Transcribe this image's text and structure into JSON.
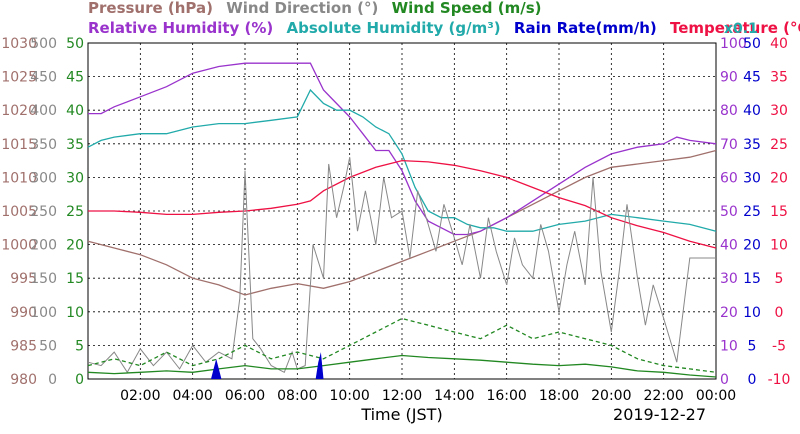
{
  "chart_data": {
    "type": "line",
    "date_label": "2019-12-27",
    "xlabel": "Time (JST)",
    "x_ticks": [
      "02:00",
      "04:00",
      "06:00",
      "08:00",
      "10:00",
      "12:00",
      "14:00",
      "16:00",
      "18:00",
      "20:00",
      "22:00",
      "00:00"
    ],
    "x_range_hours": [
      0,
      24
    ],
    "grid": true,
    "legend_row1": [
      {
        "text": "Pressure (hPa)",
        "color": "#a0706c"
      },
      {
        "text": "Wind Direction (°)",
        "color": "#888888"
      },
      {
        "text": "Wind Speed (m/s)",
        "color": "#228822"
      }
    ],
    "legend_row2": [
      {
        "text": "Relative Humidity (%)",
        "color": "#9933cc"
      },
      {
        "text": "Absolute Humidity (g/m³)",
        "color": "#22aaaa"
      },
      {
        "text": "Rain Rate(mm/h)",
        "color": "#0000cc"
      },
      {
        "text": "Temperature (°C)",
        "color": "#ee1144"
      },
      {
        "text": "x0.1",
        "color": "#22aaaa"
      }
    ],
    "axes": {
      "pressure": {
        "color": "#a0706c",
        "ticks": [
          "980",
          "985",
          "990",
          "995",
          "1000",
          "1005",
          "1010",
          "1015",
          "1020",
          "1025",
          "1030"
        ],
        "range": [
          980,
          1030
        ]
      },
      "wind_direction": {
        "color": "#888888",
        "ticks": [
          "0",
          "50",
          "100",
          "150",
          "200",
          "250",
          "300",
          "350",
          "400",
          "450",
          "500"
        ],
        "range": [
          0,
          500
        ]
      },
      "wind_speed": {
        "color": "#228822",
        "ticks": [
          "0",
          "5",
          "10",
          "15",
          "20",
          "25",
          "30",
          "35",
          "40",
          "45",
          "50"
        ],
        "range": [
          0,
          50
        ]
      },
      "relative_humidity": {
        "color": "#9933cc",
        "ticks": [
          "0",
          "10",
          "20",
          "30",
          "40",
          "50",
          "60",
          "70",
          "80",
          "90",
          "100"
        ],
        "range": [
          0,
          100
        ]
      },
      "rain_rate": {
        "color": "#0000cc",
        "ticks": [
          "0",
          "5",
          "10",
          "15",
          "20",
          "25",
          "30",
          "35",
          "40",
          "45",
          "50"
        ],
        "range": [
          0,
          50
        ]
      },
      "temperature": {
        "color": "#ee1144",
        "ticks": [
          "-10",
          "-5",
          "0",
          "5",
          "10",
          "15",
          "20",
          "25",
          "30",
          "35",
          "40"
        ],
        "range": [
          -10,
          40
        ]
      }
    },
    "series": [
      {
        "name": "Pressure (hPa)",
        "color": "#a0706c",
        "axis": "pressure",
        "x": [
          0,
          1,
          2,
          3,
          4,
          5,
          6,
          7,
          8,
          9,
          10,
          11,
          12,
          13,
          14,
          15,
          16,
          17,
          18,
          19,
          20,
          21,
          22,
          23,
          24
        ],
        "y": [
          1000.5,
          999.5,
          998.5,
          997,
          995,
          994,
          992.5,
          993.5,
          994.2,
          993.5,
          994.5,
          996,
          997.5,
          999,
          1000.5,
          1002,
          1004,
          1006,
          1008,
          1010,
          1011.5,
          1012,
          1012.5,
          1013,
          1014
        ]
      },
      {
        "name": "Relative Humidity (%)",
        "color": "#9933cc",
        "axis": "relative_humidity",
        "x": [
          0,
          0.5,
          1,
          2,
          3,
          4,
          5,
          6,
          7,
          8,
          8.5,
          9,
          9.5,
          10,
          10.5,
          11,
          11.5,
          12,
          12.5,
          13,
          13.5,
          14,
          14.5,
          15,
          15.5,
          16,
          17,
          18,
          19,
          20,
          21,
          22,
          22.5,
          23,
          24
        ],
        "y": [
          79,
          79,
          81,
          84,
          87,
          91,
          93,
          94,
          94,
          94,
          94,
          86,
          82,
          78,
          73,
          68,
          68,
          62,
          53,
          47,
          45,
          43,
          43,
          44,
          46,
          48,
          53,
          58,
          63,
          67,
          69,
          70,
          72,
          71,
          70
        ]
      },
      {
        "name": "Absolute Humidity (g/m³)",
        "color": "#22aaaa",
        "axis": "relative_humidity",
        "x": [
          0,
          0.5,
          1,
          2,
          3,
          4,
          5,
          6,
          7,
          8,
          8.5,
          9,
          9.5,
          10,
          10.5,
          11,
          11.5,
          12,
          12.5,
          13,
          13.5,
          14,
          14.5,
          15,
          15.5,
          16,
          17,
          18,
          19,
          20,
          21,
          22,
          23,
          24
        ],
        "y": [
          69,
          71,
          72,
          73,
          73,
          75,
          76,
          76,
          77,
          78,
          86,
          82,
          80,
          80,
          78,
          75,
          73,
          67,
          57,
          50,
          48,
          48,
          46,
          45,
          45,
          44,
          44,
          46,
          47,
          49,
          48,
          47,
          46,
          44
        ]
      },
      {
        "name": "Temperature (°C)",
        "color": "#ee1144",
        "axis": "temperature",
        "x": [
          0,
          1,
          2,
          3,
          4,
          5,
          6,
          7,
          8,
          8.5,
          9,
          10,
          11,
          12,
          13,
          14,
          15,
          16,
          17,
          18,
          19,
          20,
          21,
          22,
          23,
          24
        ],
        "y": [
          15,
          15,
          14.8,
          14.5,
          14.5,
          14.8,
          15,
          15.4,
          16,
          16.5,
          18,
          20,
          21.5,
          22.5,
          22.3,
          21.8,
          21,
          20,
          18.5,
          17,
          15.8,
          14,
          12.8,
          11.8,
          10.5,
          9.5
        ]
      },
      {
        "name": "Wind Direction (°)",
        "color": "#888888",
        "axis": "wind_direction",
        "x": [
          0,
          0.5,
          1,
          1.5,
          2,
          2.5,
          3,
          3.5,
          4,
          4.5,
          5,
          5.5,
          5.8,
          6,
          6.3,
          6.6,
          7,
          7.5,
          7.8,
          8,
          8.3,
          8.6,
          9,
          9.2,
          9.5,
          9.8,
          10,
          10.3,
          10.6,
          11,
          11.3,
          11.6,
          12,
          12.3,
          12.6,
          13,
          13.3,
          13.6,
          14,
          14.3,
          14.6,
          15,
          15.3,
          15.6,
          16,
          16.3,
          16.6,
          17,
          17.3,
          17.6,
          18,
          18.3,
          18.6,
          19,
          19.3,
          19.6,
          20,
          20.3,
          20.6,
          21,
          21.3,
          21.6,
          22,
          22.5,
          23,
          23.5,
          24
        ],
        "y": [
          25,
          20,
          40,
          10,
          45,
          20,
          40,
          15,
          50,
          25,
          40,
          30,
          120,
          310,
          60,
          45,
          20,
          10,
          40,
          15,
          20,
          200,
          150,
          320,
          240,
          290,
          330,
          220,
          280,
          200,
          300,
          240,
          250,
          180,
          280,
          230,
          190,
          260,
          210,
          170,
          230,
          150,
          240,
          190,
          140,
          210,
          170,
          150,
          230,
          190,
          100,
          170,
          220,
          140,
          300,
          160,
          70,
          160,
          260,
          150,
          80,
          140,
          90,
          25,
          180,
          180,
          180
        ]
      },
      {
        "name": "Wind Speed (m/s)",
        "color": "#228822",
        "axis": "wind_speed",
        "x": [
          0,
          1,
          2,
          3,
          4,
          5,
          6,
          7,
          8,
          9,
          10,
          11,
          12,
          13,
          14,
          15,
          16,
          17,
          18,
          19,
          20,
          21,
          22,
          23,
          24
        ],
        "y": [
          1,
          0.8,
          1,
          1.2,
          1,
          1.5,
          2,
          1.5,
          1.5,
          2,
          2.5,
          3,
          3.5,
          3.2,
          3,
          2.8,
          2.5,
          2.2,
          2,
          2.2,
          1.8,
          1.2,
          1,
          0.6,
          0.3
        ]
      },
      {
        "name": "Wind Speed (m/s)",
        "color": "#228822",
        "axis": "wind_speed",
        "x": [
          0,
          1,
          2,
          3,
          4,
          5,
          6,
          7,
          8,
          9,
          10,
          11,
          12,
          13,
          14,
          15,
          16,
          17,
          18,
          19,
          20,
          21,
          22,
          23,
          24
        ],
        "y": [
          2,
          3,
          2,
          4,
          2,
          3,
          5,
          3,
          4,
          3,
          5,
          7,
          9,
          8,
          7,
          6,
          8,
          6,
          7,
          6,
          5,
          3,
          2,
          1.5,
          1
        ]
      },
      {
        "name": "Rain Rate(mm/h)",
        "color": "#0000cc",
        "axis": "rain_rate",
        "x": [
          4.7,
          4.8,
          4.9,
          5.0,
          5.1,
          8.7,
          8.8,
          8.9,
          9.0
        ],
        "y": [
          0,
          1.5,
          3,
          1.5,
          0,
          0,
          2.5,
          4,
          0
        ]
      }
    ]
  }
}
